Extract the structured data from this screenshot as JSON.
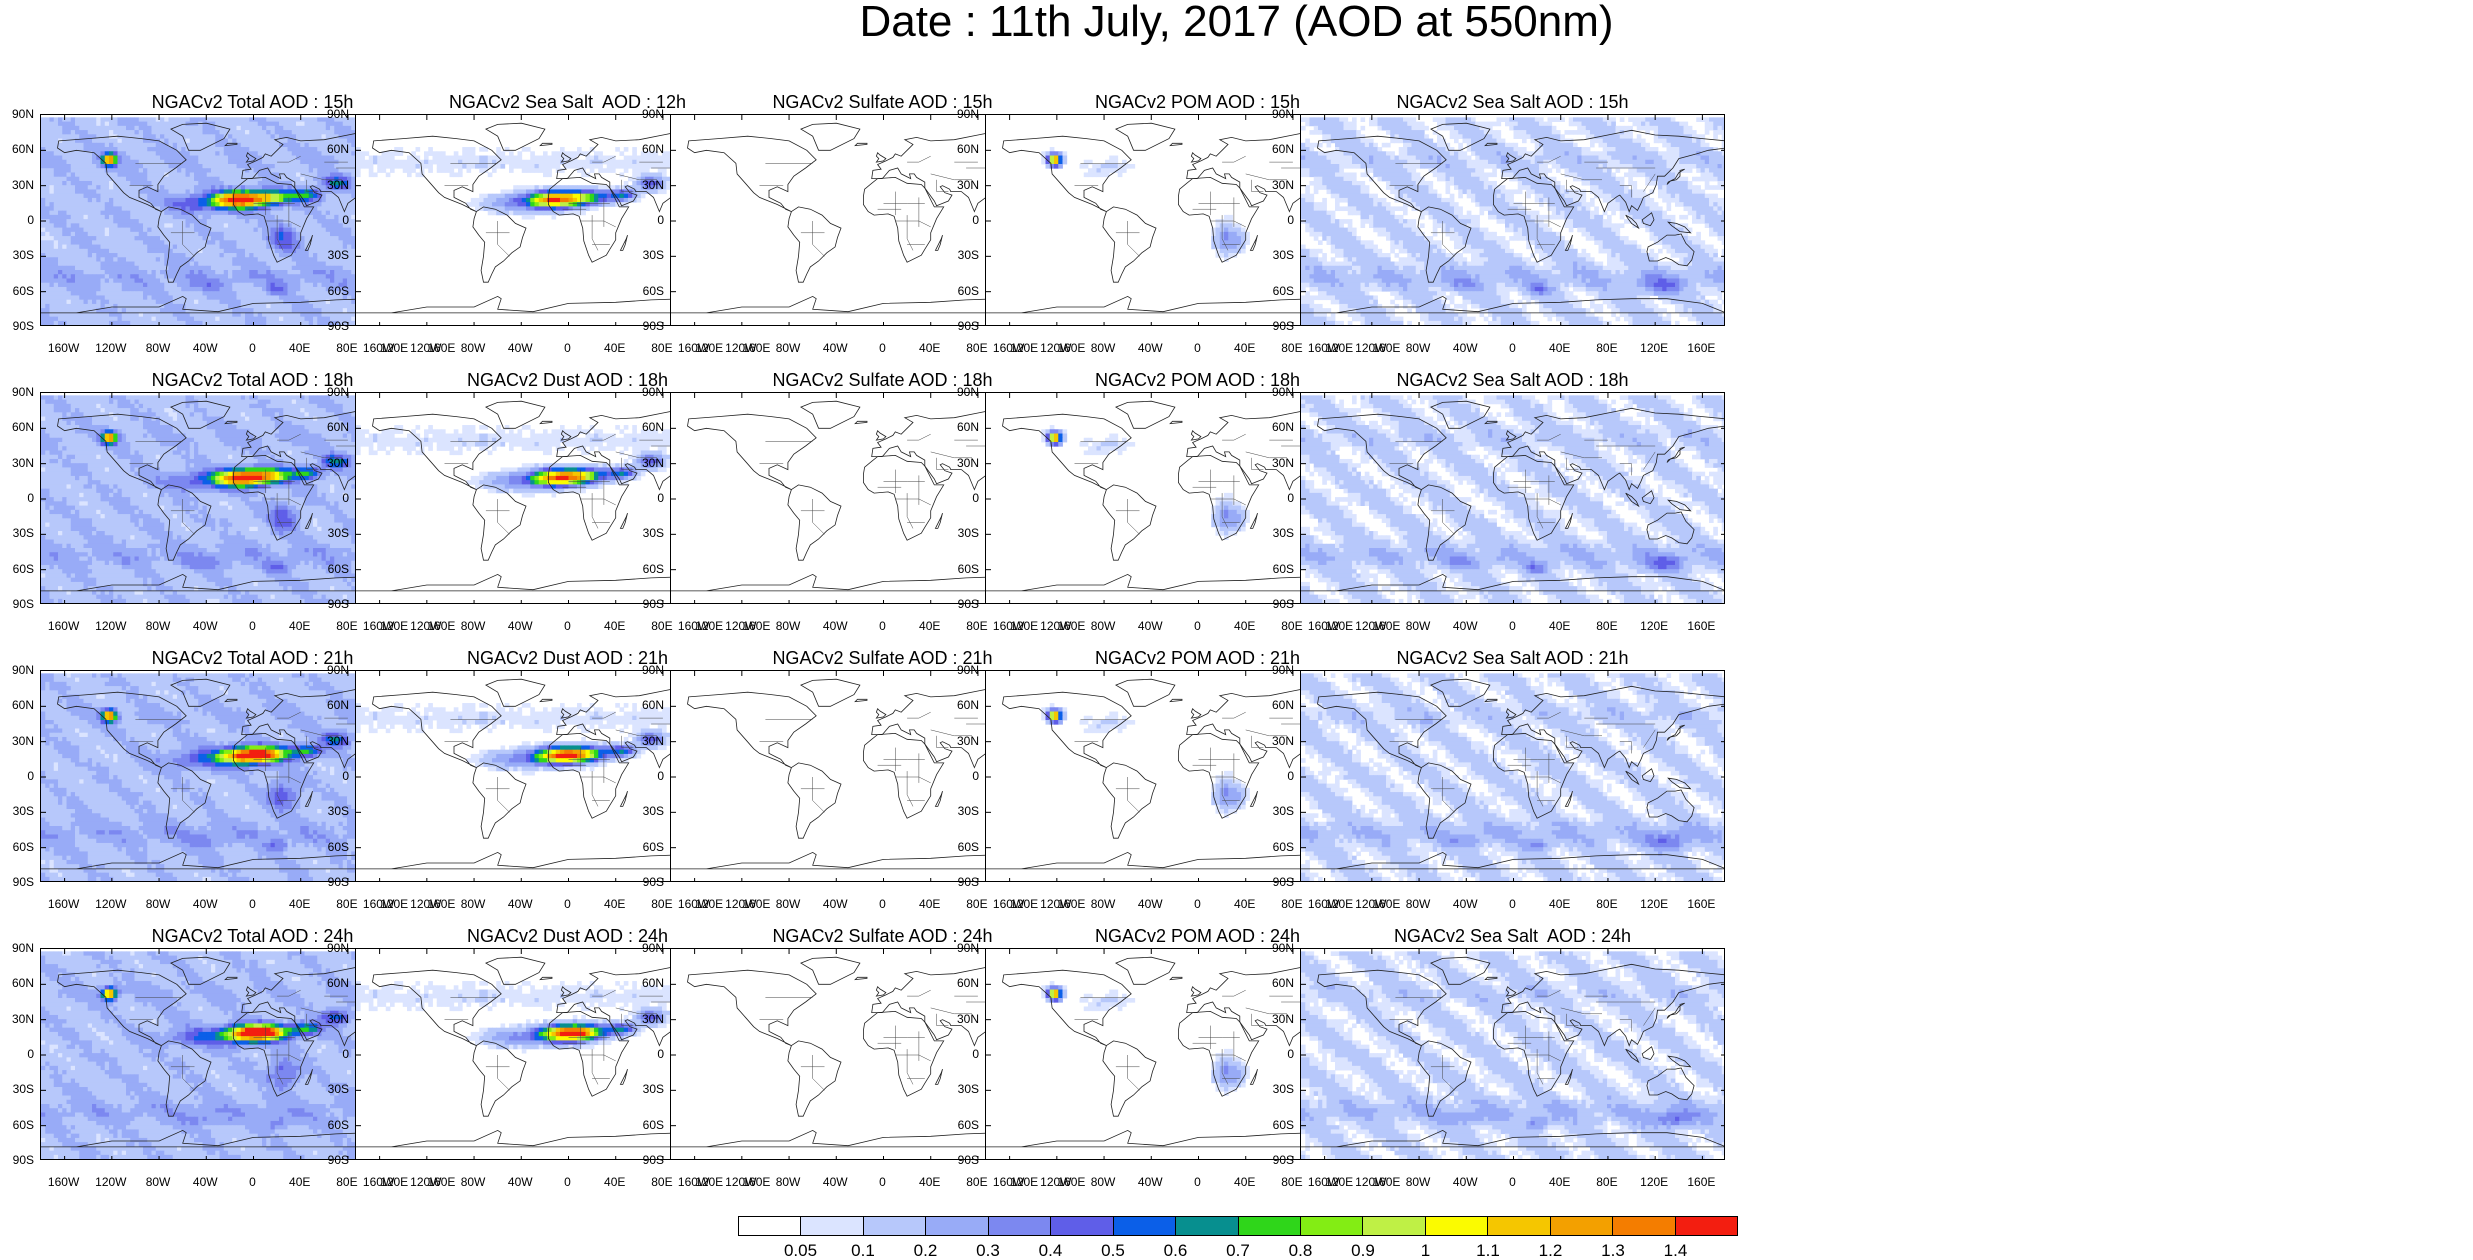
{
  "title": "Date : 11th July, 2017 (AOD at 550nm)",
  "latitude_ticks": [
    "90N",
    "60N",
    "30N",
    "0",
    "30S",
    "60S",
    "90S"
  ],
  "longitude_ticks": [
    "160W",
    "120W",
    "80W",
    "40W",
    "0",
    "40E",
    "80E",
    "120E",
    "160E"
  ],
  "panels": [
    {
      "title": "NGACv2 Total AOD : 15h",
      "variable": "Total",
      "hour": "15h"
    },
    {
      "title": "NGACv2 Sea Salt  AOD : 12h",
      "variable": "Sea Salt",
      "hour": "12h"
    },
    {
      "title": "NGACv2 Sulfate AOD : 15h",
      "variable": "Sulfate",
      "hour": "15h"
    },
    {
      "title": "NGACv2 POM AOD : 15h",
      "variable": "POM",
      "hour": "15h"
    },
    {
      "title": "NGACv2 Sea Salt AOD : 15h",
      "variable": "Sea Salt",
      "hour": "15h"
    },
    {
      "title": "NGACv2 Total AOD : 18h",
      "variable": "Total",
      "hour": "18h"
    },
    {
      "title": "NGACv2 Dust AOD : 18h",
      "variable": "Dust",
      "hour": "18h"
    },
    {
      "title": "NGACv2 Sulfate AOD : 18h",
      "variable": "Sulfate",
      "hour": "18h"
    },
    {
      "title": "NGACv2 POM AOD : 18h",
      "variable": "POM",
      "hour": "18h"
    },
    {
      "title": "NGACv2 Sea Salt AOD : 18h",
      "variable": "Sea Salt",
      "hour": "18h"
    },
    {
      "title": "NGACv2 Total AOD : 21h",
      "variable": "Total",
      "hour": "21h"
    },
    {
      "title": "NGACv2 Dust AOD : 21h",
      "variable": "Dust",
      "hour": "21h"
    },
    {
      "title": "NGACv2 Sulfate AOD : 21h",
      "variable": "Sulfate",
      "hour": "21h"
    },
    {
      "title": "NGACv2 POM AOD : 21h",
      "variable": "POM",
      "hour": "21h"
    },
    {
      "title": "NGACv2 Sea Salt AOD : 21h",
      "variable": "Sea Salt",
      "hour": "21h"
    },
    {
      "title": "NGACv2 Total AOD : 24h",
      "variable": "Total",
      "hour": "24h"
    },
    {
      "title": "NGACv2 Dust AOD : 24h",
      "variable": "Dust",
      "hour": "24h"
    },
    {
      "title": "NGACv2 Sulfate AOD : 24h",
      "variable": "Sulfate",
      "hour": "24h"
    },
    {
      "title": "NGACv2 POM AOD : 24h",
      "variable": "POM",
      "hour": "24h"
    },
    {
      "title": "NGACv2 Sea Salt  AOD : 24h",
      "variable": "Sea Salt",
      "hour": "24h"
    }
  ],
  "colorbar": {
    "labels": [
      "0.05",
      "0.1",
      "0.2",
      "0.3",
      "0.4",
      "0.5",
      "0.6",
      "0.7",
      "0.8",
      "0.9",
      "1",
      "1.1",
      "1.2",
      "1.3",
      "1.4"
    ],
    "colors": [
      "#ffffff",
      "#dbe4ff",
      "#b7c8fb",
      "#98abf7",
      "#7c88f0",
      "#5f5ee8",
      "#0b5fe8",
      "#078f8f",
      "#2fd61a",
      "#83ed14",
      "#bff045",
      "#fbfb00",
      "#f5c600",
      "#f3a000",
      "#f47d00",
      "#f31e10"
    ]
  }
}
